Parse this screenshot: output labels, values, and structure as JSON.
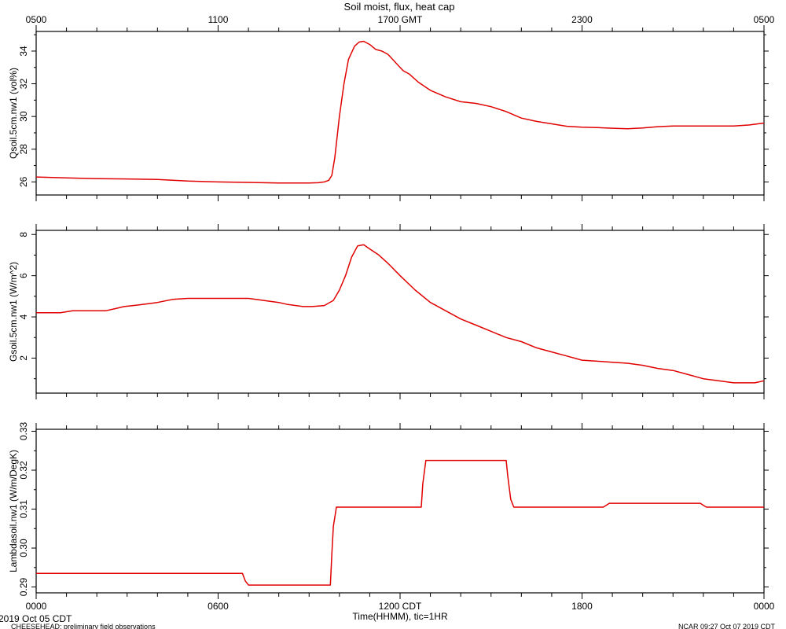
{
  "figure": {
    "title": "Soil moist, flux, heat cap",
    "footer_left_1": "2019 Oct 05 CDT",
    "footer_left_2": "CHEESEHEAD: preliminary field observations",
    "footer_right": "NCAR 09:27 Oct 07 2019 CDT",
    "line_color": "#e00000",
    "axis_color": "#000000",
    "background": "#ffffff"
  },
  "chart_data": [
    {
      "type": "line",
      "xlabel": "",
      "ylabel": "Qsoil.5cm.nw1 (vol%)",
      "xlim": [
        0,
        24
      ],
      "ylim": [
        25.2,
        35.2
      ],
      "yticks": [
        26,
        28,
        30,
        32,
        34
      ],
      "top_axis": {
        "ticks": [
          0,
          6,
          12,
          18,
          24
        ],
        "labels": [
          "0500",
          "1100",
          "1700 GMT",
          "2300",
          "0500"
        ]
      },
      "series": [
        {
          "name": "",
          "x": [
            0,
            1,
            2,
            3,
            4,
            5,
            6,
            7,
            7.5,
            8,
            8.5,
            9,
            9.3,
            9.5,
            9.65,
            9.75,
            9.85,
            10.0,
            10.15,
            10.3,
            10.5,
            10.65,
            10.8,
            11.0,
            11.2,
            11.4,
            11.6,
            11.8,
            12.0,
            12.1,
            12.3,
            12.6,
            13.0,
            13.5,
            14.0,
            14.5,
            15.0,
            15.5,
            16.0,
            16.5,
            17.0,
            17.5,
            18.0,
            18.5,
            19.0,
            19.5,
            20.0,
            20.5,
            21.0,
            21.5,
            22.0,
            22.5,
            23.0,
            23.5,
            24.0
          ],
          "y": [
            26.3,
            26.25,
            26.2,
            26.18,
            26.15,
            26.05,
            26.0,
            25.97,
            25.95,
            25.93,
            25.93,
            25.93,
            25.95,
            26.0,
            26.1,
            26.4,
            27.5,
            30.0,
            32.0,
            33.5,
            34.3,
            34.55,
            34.6,
            34.4,
            34.1,
            34.0,
            33.8,
            33.4,
            33.0,
            32.8,
            32.6,
            32.1,
            31.6,
            31.2,
            30.9,
            30.8,
            30.6,
            30.3,
            29.9,
            29.7,
            29.55,
            29.4,
            29.35,
            29.32,
            29.28,
            29.25,
            29.3,
            29.38,
            29.42,
            29.42,
            29.42,
            29.42,
            29.42,
            29.48,
            29.6
          ]
        }
      ]
    },
    {
      "type": "line",
      "xlabel": "",
      "ylabel": "Gsoil.5cm.nw1 (W/m^2)",
      "xlim": [
        0,
        24
      ],
      "ylim": [
        0.3,
        8.2
      ],
      "yticks": [
        2,
        4,
        6,
        8
      ],
      "series": [
        {
          "name": "",
          "x": [
            0,
            0.8,
            1.2,
            1.8,
            2.3,
            2.6,
            2.9,
            3.2,
            3.5,
            4.0,
            4.5,
            5.0,
            6.0,
            7.0,
            7.5,
            8.0,
            8.3,
            8.8,
            9.1,
            9.5,
            9.8,
            10.0,
            10.2,
            10.4,
            10.6,
            10.8,
            11.0,
            11.3,
            11.6,
            12.0,
            12.5,
            13.0,
            13.5,
            14.0,
            14.5,
            15.0,
            15.5,
            16.0,
            16.5,
            17.0,
            17.5,
            18.0,
            18.5,
            19.0,
            19.5,
            20.0,
            20.5,
            21.0,
            21.5,
            22.0,
            22.5,
            23.0,
            23.5,
            23.7,
            24.0
          ],
          "y": [
            4.2,
            4.2,
            4.3,
            4.3,
            4.3,
            4.4,
            4.5,
            4.55,
            4.6,
            4.7,
            4.85,
            4.9,
            4.9,
            4.9,
            4.8,
            4.7,
            4.6,
            4.5,
            4.5,
            4.55,
            4.8,
            5.3,
            6.0,
            6.9,
            7.45,
            7.5,
            7.3,
            7.0,
            6.6,
            6.0,
            5.3,
            4.7,
            4.3,
            3.9,
            3.6,
            3.3,
            3.0,
            2.8,
            2.5,
            2.3,
            2.1,
            1.9,
            1.85,
            1.8,
            1.75,
            1.65,
            1.5,
            1.4,
            1.2,
            1.0,
            0.9,
            0.8,
            0.8,
            0.8,
            0.9
          ]
        }
      ]
    },
    {
      "type": "line",
      "xlabel": "Time(HHMM), tic=1HR",
      "ylabel": "Lambdasoil.nw1 (W/m/DegK)",
      "xlim": [
        0,
        24
      ],
      "ylim": [
        0.2885,
        0.3305
      ],
      "yticks": [
        0.29,
        0.3,
        0.31,
        0.32,
        0.33
      ],
      "yticklabels": [
        "0.29",
        "0.30",
        "0.31",
        "0.32",
        "0.33"
      ],
      "bottom_axis": {
        "ticks": [
          0,
          6,
          12,
          18,
          24
        ],
        "labels": [
          "0000",
          "0600",
          "1200 CDT",
          "1800",
          "0000"
        ]
      },
      "series": [
        {
          "name": "",
          "x": [
            0,
            6.8,
            6.9,
            7.0,
            7.1,
            9.7,
            9.75,
            9.8,
            9.9,
            12.7,
            12.75,
            12.85,
            13.0,
            15.5,
            15.55,
            15.65,
            15.75,
            18.7,
            18.8,
            18.9,
            19.0,
            21.9,
            22.0,
            22.1,
            24.0
          ],
          "y": [
            0.2935,
            0.2935,
            0.2915,
            0.2905,
            0.2905,
            0.2905,
            0.2985,
            0.3055,
            0.3105,
            0.3105,
            0.3165,
            0.3225,
            0.3225,
            0.3225,
            0.3185,
            0.3125,
            0.3105,
            0.3105,
            0.311,
            0.3115,
            0.3115,
            0.3115,
            0.311,
            0.3105,
            0.3105
          ]
        }
      ]
    }
  ]
}
